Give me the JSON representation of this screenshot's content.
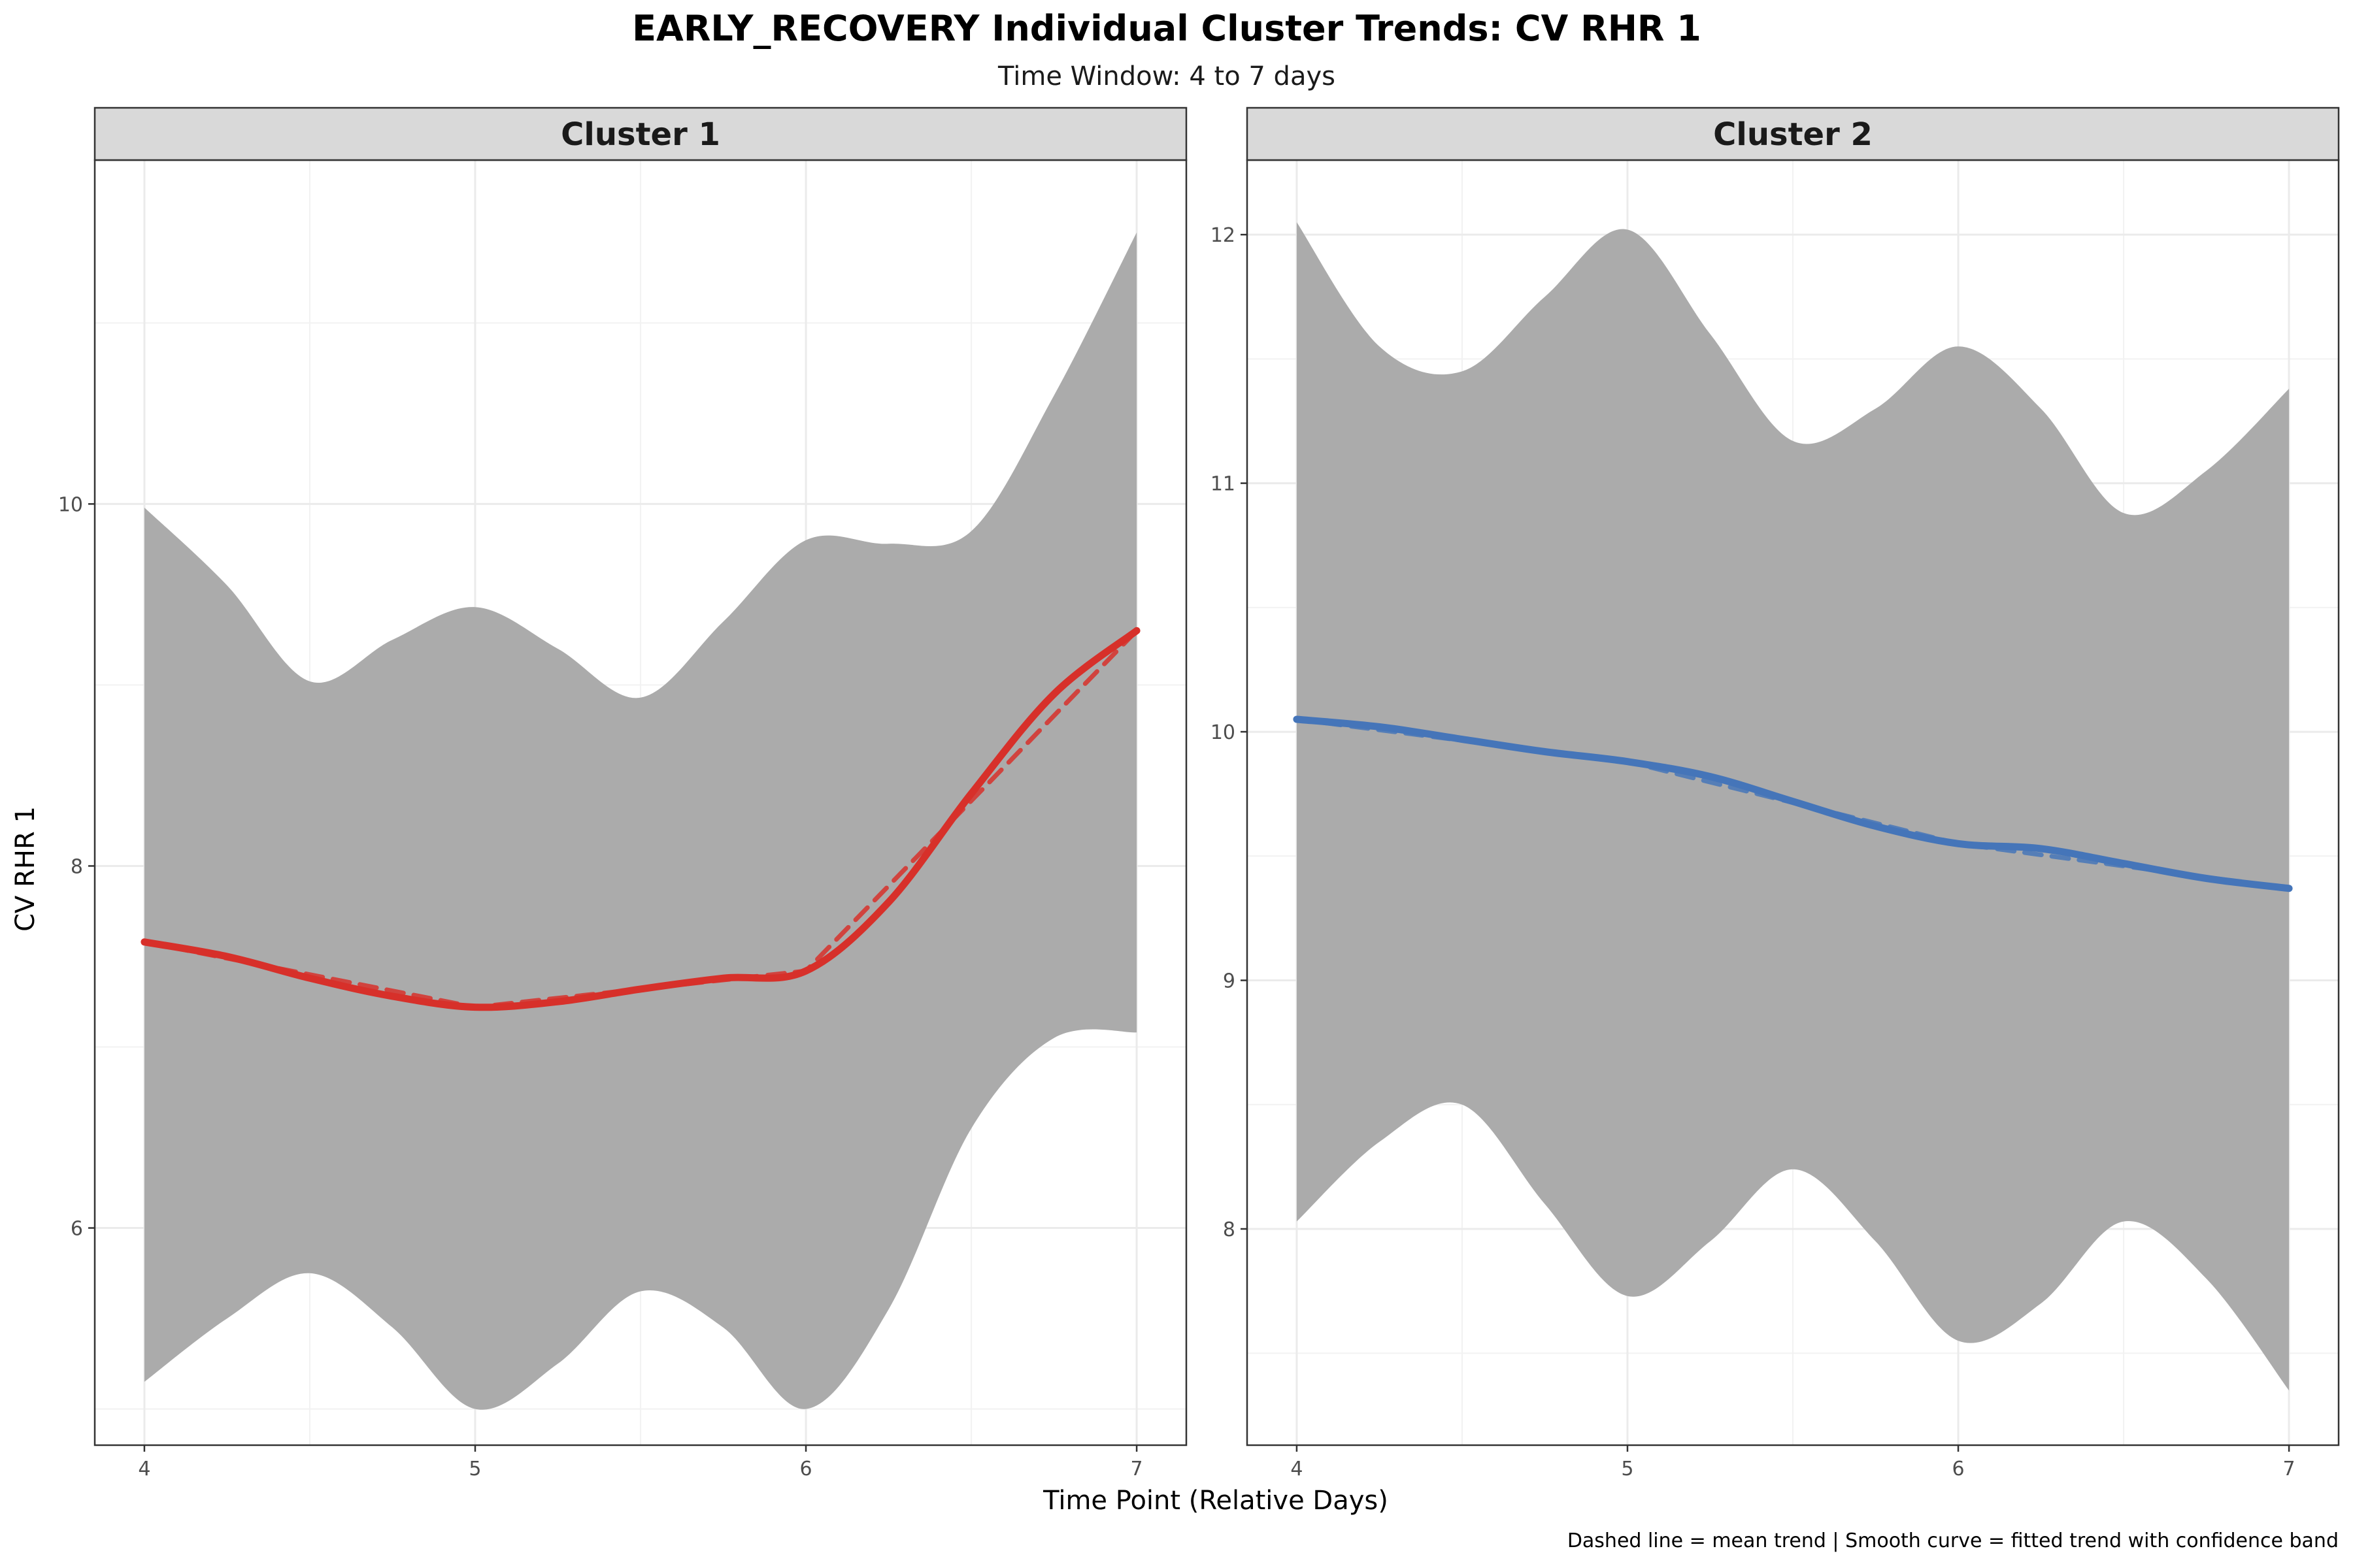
{
  "title": "EARLY_RECOVERY Individual Cluster Trends: CV RHR 1",
  "subtitle": "Time Window: 4 to 7 days",
  "xlabel": "Time Point (Relative Days)",
  "ylabel": "CV RHR 1",
  "caption": "Dashed line = mean trend | Smooth curve = fitted trend with confidence band",
  "chart_data": [
    {
      "type": "line",
      "panel": "Cluster 1",
      "color": "#d7302a",
      "band_color": "#ababab",
      "xlim": [
        3.85,
        7.15
      ],
      "ylim": [
        4.8,
        11.9
      ],
      "x_ticks": [
        4,
        5,
        6,
        7
      ],
      "y_ticks": [
        6,
        8,
        10
      ],
      "grid": true,
      "mean_trend": {
        "x": [
          4,
          5,
          6,
          7
        ],
        "y": [
          7.58,
          7.22,
          7.42,
          9.3
        ]
      },
      "fitted_trend": {
        "x": [
          4,
          4.25,
          4.5,
          4.75,
          5,
          5.25,
          5.5,
          5.75,
          6,
          6.25,
          6.5,
          6.75,
          7
        ],
        "y": [
          7.58,
          7.5,
          7.38,
          7.28,
          7.22,
          7.25,
          7.32,
          7.38,
          7.42,
          7.8,
          8.4,
          8.95,
          9.3
        ],
        "lower": [
          5.15,
          5.5,
          5.75,
          5.45,
          5.0,
          5.25,
          5.65,
          5.45,
          5.0,
          5.55,
          6.55,
          7.05,
          7.08
        ],
        "upper": [
          9.98,
          9.55,
          9.02,
          9.25,
          9.43,
          9.2,
          8.93,
          9.35,
          9.8,
          9.78,
          9.85,
          10.6,
          11.5
        ]
      }
    },
    {
      "type": "line",
      "panel": "Cluster 2",
      "color": "#4575b9",
      "band_color": "#ababab",
      "xlim": [
        3.85,
        7.15
      ],
      "ylim": [
        7.13,
        12.3
      ],
      "x_ticks": [
        4,
        5,
        6,
        7
      ],
      "y_ticks": [
        8,
        9,
        10,
        11,
        12
      ],
      "grid": true,
      "mean_trend": {
        "x": [
          4,
          5,
          6,
          7
        ],
        "y": [
          10.05,
          9.88,
          9.55,
          9.37
        ]
      },
      "fitted_trend": {
        "x": [
          4,
          4.25,
          4.5,
          4.75,
          5,
          5.25,
          5.5,
          5.75,
          6,
          6.25,
          6.5,
          6.75,
          7
        ],
        "y": [
          10.05,
          10.02,
          9.97,
          9.92,
          9.88,
          9.82,
          9.72,
          9.62,
          9.55,
          9.53,
          9.47,
          9.41,
          9.37
        ],
        "lower": [
          8.03,
          8.35,
          8.5,
          8.1,
          7.73,
          7.95,
          8.24,
          7.95,
          7.55,
          7.7,
          8.03,
          7.8,
          7.35
        ],
        "upper": [
          12.05,
          11.55,
          11.45,
          11.75,
          12.02,
          11.6,
          11.17,
          11.3,
          11.55,
          11.3,
          10.88,
          11.05,
          11.38
        ]
      }
    }
  ]
}
